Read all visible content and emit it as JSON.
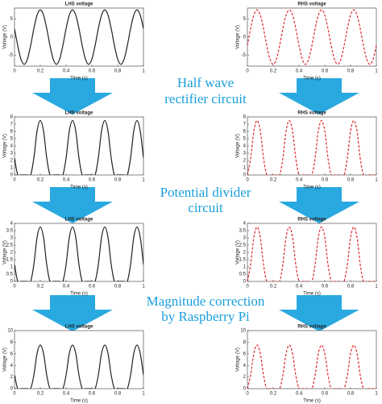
{
  "chart_data": [
    {
      "type": "line",
      "title": "LHS voltage",
      "xlabel": "Time (s)",
      "ylabel": "Voltage (V)",
      "line_style": "solid",
      "x": [
        0,
        0.025,
        0.05,
        0.075,
        0.1,
        0.125,
        0.15,
        0.175,
        0.2,
        0.225,
        0.25,
        0.275,
        0.3,
        0.325,
        0.35,
        0.375,
        0.4,
        0.425,
        0.45,
        0.475,
        0.5,
        0.525,
        0.55,
        0.575,
        0.6,
        0.625,
        0.65,
        0.675,
        0.7,
        0.725,
        0.75,
        0.775,
        0.8,
        0.825,
        0.85,
        0.875,
        0.9,
        0.925,
        0.95,
        0.975,
        1
      ],
      "series": [
        {
          "color": "#222222",
          "values": [
            2.32,
            -2.32,
            -6.07,
            -7.5,
            -6.07,
            -2.32,
            2.32,
            6.07,
            7.5,
            6.07,
            2.32,
            -2.32,
            -6.07,
            -7.5,
            -6.07,
            -2.32,
            2.32,
            6.07,
            7.5,
            6.07,
            2.32,
            -2.32,
            -6.07,
            -7.5,
            -6.07,
            -2.32,
            2.32,
            6.07,
            7.5,
            6.07,
            2.32,
            -2.32,
            -6.07,
            -7.5,
            -6.07,
            -2.32,
            2.32,
            6.07,
            7.5,
            6.07,
            2.32
          ]
        }
      ],
      "xlim": [
        0,
        1
      ],
      "ylim": [
        -8,
        8
      ],
      "xticks": [
        0,
        0.2,
        0.4,
        0.6,
        0.8,
        1
      ],
      "yticks": [
        -5,
        0,
        5
      ]
    },
    {
      "type": "line",
      "title": "RHS voltage",
      "xlabel": "Time (s)",
      "ylabel": "Voltage (V)",
      "line_style": "dashed",
      "x": [
        0,
        0.025,
        0.05,
        0.075,
        0.1,
        0.125,
        0.15,
        0.175,
        0.2,
        0.225,
        0.25,
        0.275,
        0.3,
        0.325,
        0.35,
        0.375,
        0.4,
        0.425,
        0.45,
        0.475,
        0.5,
        0.525,
        0.55,
        0.575,
        0.6,
        0.625,
        0.65,
        0.675,
        0.7,
        0.725,
        0.75,
        0.775,
        0.8,
        0.825,
        0.85,
        0.875,
        0.9,
        0.925,
        0.95,
        0.975,
        1
      ],
      "series": [
        {
          "color": "#e0262b",
          "values": [
            -2.32,
            2.32,
            6.07,
            7.5,
            6.07,
            2.32,
            -2.32,
            -6.07,
            -7.5,
            -6.07,
            -2.32,
            2.32,
            6.07,
            7.5,
            6.07,
            2.32,
            -2.32,
            -6.07,
            -7.5,
            -6.07,
            -2.32,
            2.32,
            6.07,
            7.5,
            6.07,
            2.32,
            -2.32,
            -6.07,
            -7.5,
            -6.07,
            -2.32,
            2.32,
            6.07,
            7.5,
            6.07,
            2.32,
            -2.32,
            -6.07,
            -7.5,
            -6.07,
            -2.32
          ]
        }
      ],
      "xlim": [
        0,
        1
      ],
      "ylim": [
        -8,
        8
      ],
      "xticks": [
        0,
        0.2,
        0.4,
        0.6,
        0.8,
        1
      ],
      "yticks": [
        -5,
        0,
        5
      ]
    },
    {
      "type": "line",
      "title": "LHS voltage",
      "xlabel": "Time (s)",
      "ylabel": "Voltage (V)",
      "line_style": "solid",
      "x": [
        0,
        0.025,
        0.05,
        0.075,
        0.1,
        0.125,
        0.15,
        0.175,
        0.2,
        0.225,
        0.25,
        0.275,
        0.3,
        0.325,
        0.35,
        0.375,
        0.4,
        0.425,
        0.45,
        0.475,
        0.5,
        0.525,
        0.55,
        0.575,
        0.6,
        0.625,
        0.65,
        0.675,
        0.7,
        0.725,
        0.75,
        0.775,
        0.8,
        0.825,
        0.85,
        0.875,
        0.9,
        0.925,
        0.95,
        0.975,
        1
      ],
      "series": [
        {
          "color": "#222222",
          "values": [
            2.32,
            0,
            0,
            0,
            0,
            0,
            2.32,
            6.07,
            7.5,
            6.07,
            2.32,
            0,
            0,
            0,
            0,
            0,
            2.32,
            6.07,
            7.5,
            6.07,
            2.32,
            0,
            0,
            0,
            0,
            0,
            2.32,
            6.07,
            7.5,
            6.07,
            2.32,
            0,
            0,
            0,
            0,
            0,
            2.32,
            6.07,
            7.5,
            6.07,
            2.32
          ]
        }
      ],
      "xlim": [
        0,
        1
      ],
      "ylim": [
        0,
        8
      ],
      "xticks": [
        0,
        0.2,
        0.4,
        0.6,
        0.8,
        1
      ],
      "yticks": [
        0,
        1,
        2,
        3,
        4,
        5,
        6,
        7,
        8
      ]
    },
    {
      "type": "line",
      "title": "RHS voltage",
      "xlabel": "Time (s)",
      "ylabel": "Voltage (V)",
      "line_style": "dashed",
      "x": [
        0,
        0.025,
        0.05,
        0.075,
        0.1,
        0.125,
        0.15,
        0.175,
        0.2,
        0.225,
        0.25,
        0.275,
        0.3,
        0.325,
        0.35,
        0.375,
        0.4,
        0.425,
        0.45,
        0.475,
        0.5,
        0.525,
        0.55,
        0.575,
        0.6,
        0.625,
        0.65,
        0.675,
        0.7,
        0.725,
        0.75,
        0.775,
        0.8,
        0.825,
        0.85,
        0.875,
        0.9,
        0.925,
        0.95,
        0.975,
        1
      ],
      "series": [
        {
          "color": "#e0262b",
          "values": [
            0,
            2.32,
            6.07,
            7.5,
            6.07,
            2.32,
            0,
            0,
            0,
            0,
            0,
            2.32,
            6.07,
            7.5,
            6.07,
            2.32,
            0,
            0,
            0,
            0,
            0,
            2.32,
            6.07,
            7.5,
            6.07,
            2.32,
            0,
            0,
            0,
            0,
            0,
            2.32,
            6.07,
            7.5,
            6.07,
            2.32,
            0,
            0,
            0,
            0,
            0
          ]
        }
      ],
      "xlim": [
        0,
        1
      ],
      "ylim": [
        0,
        8
      ],
      "xticks": [
        0,
        0.2,
        0.4,
        0.6,
        0.8,
        1
      ],
      "yticks": [
        0,
        1,
        2,
        3,
        4,
        5,
        6,
        7,
        8
      ]
    },
    {
      "type": "line",
      "title": "LHS voltage",
      "xlabel": "Time (s)",
      "ylabel": "Voltage (V)",
      "line_style": "solid",
      "x": [
        0,
        0.025,
        0.05,
        0.075,
        0.1,
        0.125,
        0.15,
        0.175,
        0.2,
        0.225,
        0.25,
        0.275,
        0.3,
        0.325,
        0.35,
        0.375,
        0.4,
        0.425,
        0.45,
        0.475,
        0.5,
        0.525,
        0.55,
        0.575,
        0.6,
        0.625,
        0.65,
        0.675,
        0.7,
        0.725,
        0.75,
        0.775,
        0.8,
        0.825,
        0.85,
        0.875,
        0.9,
        0.925,
        0.95,
        0.975,
        1
      ],
      "series": [
        {
          "color": "#222222",
          "values": [
            1.16,
            0,
            0,
            0,
            0,
            0,
            1.16,
            3.04,
            3.75,
            3.04,
            1.16,
            0,
            0,
            0,
            0,
            0,
            1.16,
            3.04,
            3.75,
            3.04,
            1.16,
            0,
            0,
            0,
            0,
            0,
            1.16,
            3.04,
            3.75,
            3.04,
            1.16,
            0,
            0,
            0,
            0,
            0,
            1.16,
            3.04,
            3.75,
            3.04,
            1.16
          ]
        }
      ],
      "xlim": [
        0,
        1
      ],
      "ylim": [
        0,
        4
      ],
      "xticks": [
        0,
        0.2,
        0.4,
        0.6,
        0.8,
        1
      ],
      "yticks": [
        0,
        0.5,
        1,
        1.5,
        2,
        2.5,
        3,
        3.5,
        4
      ]
    },
    {
      "type": "line",
      "title": "RHS voltage",
      "xlabel": "Time (s)",
      "ylabel": "Voltage (V)",
      "line_style": "dashed",
      "x": [
        0,
        0.025,
        0.05,
        0.075,
        0.1,
        0.125,
        0.15,
        0.175,
        0.2,
        0.225,
        0.25,
        0.275,
        0.3,
        0.325,
        0.35,
        0.375,
        0.4,
        0.425,
        0.45,
        0.475,
        0.5,
        0.525,
        0.55,
        0.575,
        0.6,
        0.625,
        0.65,
        0.675,
        0.7,
        0.725,
        0.75,
        0.775,
        0.8,
        0.825,
        0.85,
        0.875,
        0.9,
        0.925,
        0.95,
        0.975,
        1
      ],
      "series": [
        {
          "color": "#e0262b",
          "values": [
            0,
            1.16,
            3.04,
            3.75,
            3.04,
            1.16,
            0,
            0,
            0,
            0,
            0,
            1.16,
            3.04,
            3.75,
            3.04,
            1.16,
            0,
            0,
            0,
            0,
            0,
            1.16,
            3.04,
            3.75,
            3.04,
            1.16,
            0,
            0,
            0,
            0,
            0,
            1.16,
            3.04,
            3.75,
            3.04,
            1.16,
            0,
            0,
            0,
            0,
            0
          ]
        }
      ],
      "xlim": [
        0,
        1
      ],
      "ylim": [
        0,
        4
      ],
      "xticks": [
        0,
        0.2,
        0.4,
        0.6,
        0.8,
        1
      ],
      "yticks": [
        0,
        0.5,
        1,
        1.5,
        2,
        2.5,
        3,
        3.5,
        4
      ]
    },
    {
      "type": "line",
      "title": "LHS voltage",
      "xlabel": "Time (s)",
      "ylabel": "Voltage (V)",
      "line_style": "solid",
      "x": [
        0,
        0.025,
        0.05,
        0.075,
        0.1,
        0.125,
        0.15,
        0.175,
        0.2,
        0.225,
        0.25,
        0.275,
        0.3,
        0.325,
        0.35,
        0.375,
        0.4,
        0.425,
        0.45,
        0.475,
        0.5,
        0.525,
        0.55,
        0.575,
        0.6,
        0.625,
        0.65,
        0.675,
        0.7,
        0.725,
        0.75,
        0.775,
        0.8,
        0.825,
        0.85,
        0.875,
        0.9,
        0.925,
        0.95,
        0.975,
        1
      ],
      "series": [
        {
          "color": "#222222",
          "values": [
            2.32,
            0,
            0,
            0,
            0,
            0,
            2.32,
            6.07,
            7.5,
            6.07,
            2.32,
            0,
            0,
            0,
            0,
            0,
            2.32,
            6.07,
            7.5,
            6.07,
            2.32,
            0,
            0,
            0,
            0,
            0,
            2.32,
            6.07,
            7.5,
            6.07,
            2.32,
            0,
            0,
            0,
            0,
            0,
            2.32,
            6.07,
            7.5,
            6.07,
            2.32
          ]
        }
      ],
      "xlim": [
        0,
        1
      ],
      "ylim": [
        0,
        10
      ],
      "xticks": [
        0,
        0.2,
        0.4,
        0.6,
        0.8,
        1
      ],
      "yticks": [
        0,
        2,
        4,
        6,
        8,
        10
      ]
    },
    {
      "type": "line",
      "title": "RHS voltage",
      "xlabel": "Time (s)",
      "ylabel": "Voltage (V)",
      "line_style": "dashed",
      "x": [
        0,
        0.025,
        0.05,
        0.075,
        0.1,
        0.125,
        0.15,
        0.175,
        0.2,
        0.225,
        0.25,
        0.275,
        0.3,
        0.325,
        0.35,
        0.375,
        0.4,
        0.425,
        0.45,
        0.475,
        0.5,
        0.525,
        0.55,
        0.575,
        0.6,
        0.625,
        0.65,
        0.675,
        0.7,
        0.725,
        0.75,
        0.775,
        0.8,
        0.825,
        0.85,
        0.875,
        0.9,
        0.925,
        0.95,
        0.975,
        1
      ],
      "series": [
        {
          "color": "#e0262b",
          "values": [
            0,
            2.32,
            6.07,
            7.5,
            6.07,
            2.32,
            0,
            0,
            0,
            0,
            0,
            2.32,
            6.07,
            7.5,
            6.07,
            2.32,
            0,
            0,
            0,
            0,
            0,
            2.32,
            6.07,
            7.5,
            6.07,
            2.32,
            0,
            0,
            0,
            0,
            0,
            2.32,
            6.07,
            7.5,
            6.07,
            2.32,
            0,
            0,
            0,
            0,
            0
          ]
        }
      ],
      "xlim": [
        0,
        1
      ],
      "ylim": [
        0,
        10
      ],
      "xticks": [
        0,
        0.2,
        0.4,
        0.6,
        0.8,
        1
      ],
      "yticks": [
        0,
        2,
        4,
        6,
        8,
        10
      ]
    }
  ],
  "steps": [
    [
      "Half wave",
      "rectifier circuit"
    ],
    [
      "Potential divider",
      "circuit"
    ],
    [
      "Magnitude correction",
      "by Raspberry Pi"
    ]
  ]
}
